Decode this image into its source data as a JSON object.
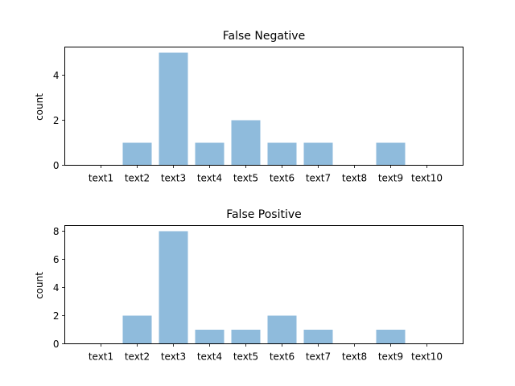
{
  "chart_data": [
    {
      "type": "bar",
      "title": "False Negative",
      "xlabel": "",
      "ylabel": "count",
      "categories": [
        "text1",
        "text2",
        "text3",
        "text4",
        "text5",
        "text6",
        "text7",
        "text8",
        "text9",
        "text10"
      ],
      "values": [
        0,
        1,
        5,
        1,
        2,
        1,
        1,
        0,
        1,
        0
      ],
      "ylim": [
        0,
        5.25
      ],
      "yticks": [
        0,
        2,
        4
      ],
      "bar_color": "#8fbbdc",
      "grid": false,
      "legend": "none"
    },
    {
      "type": "bar",
      "title": "False Positive",
      "xlabel": "",
      "ylabel": "count",
      "categories": [
        "text1",
        "text2",
        "text3",
        "text4",
        "text5",
        "text6",
        "text7",
        "text8",
        "text9",
        "text10"
      ],
      "values": [
        0,
        2,
        8,
        1,
        1,
        2,
        1,
        0,
        1,
        0
      ],
      "ylim": [
        0,
        8.4
      ],
      "yticks": [
        0,
        2,
        4,
        6,
        8
      ],
      "bar_color": "#8fbbdc",
      "grid": false,
      "legend": "none"
    }
  ]
}
